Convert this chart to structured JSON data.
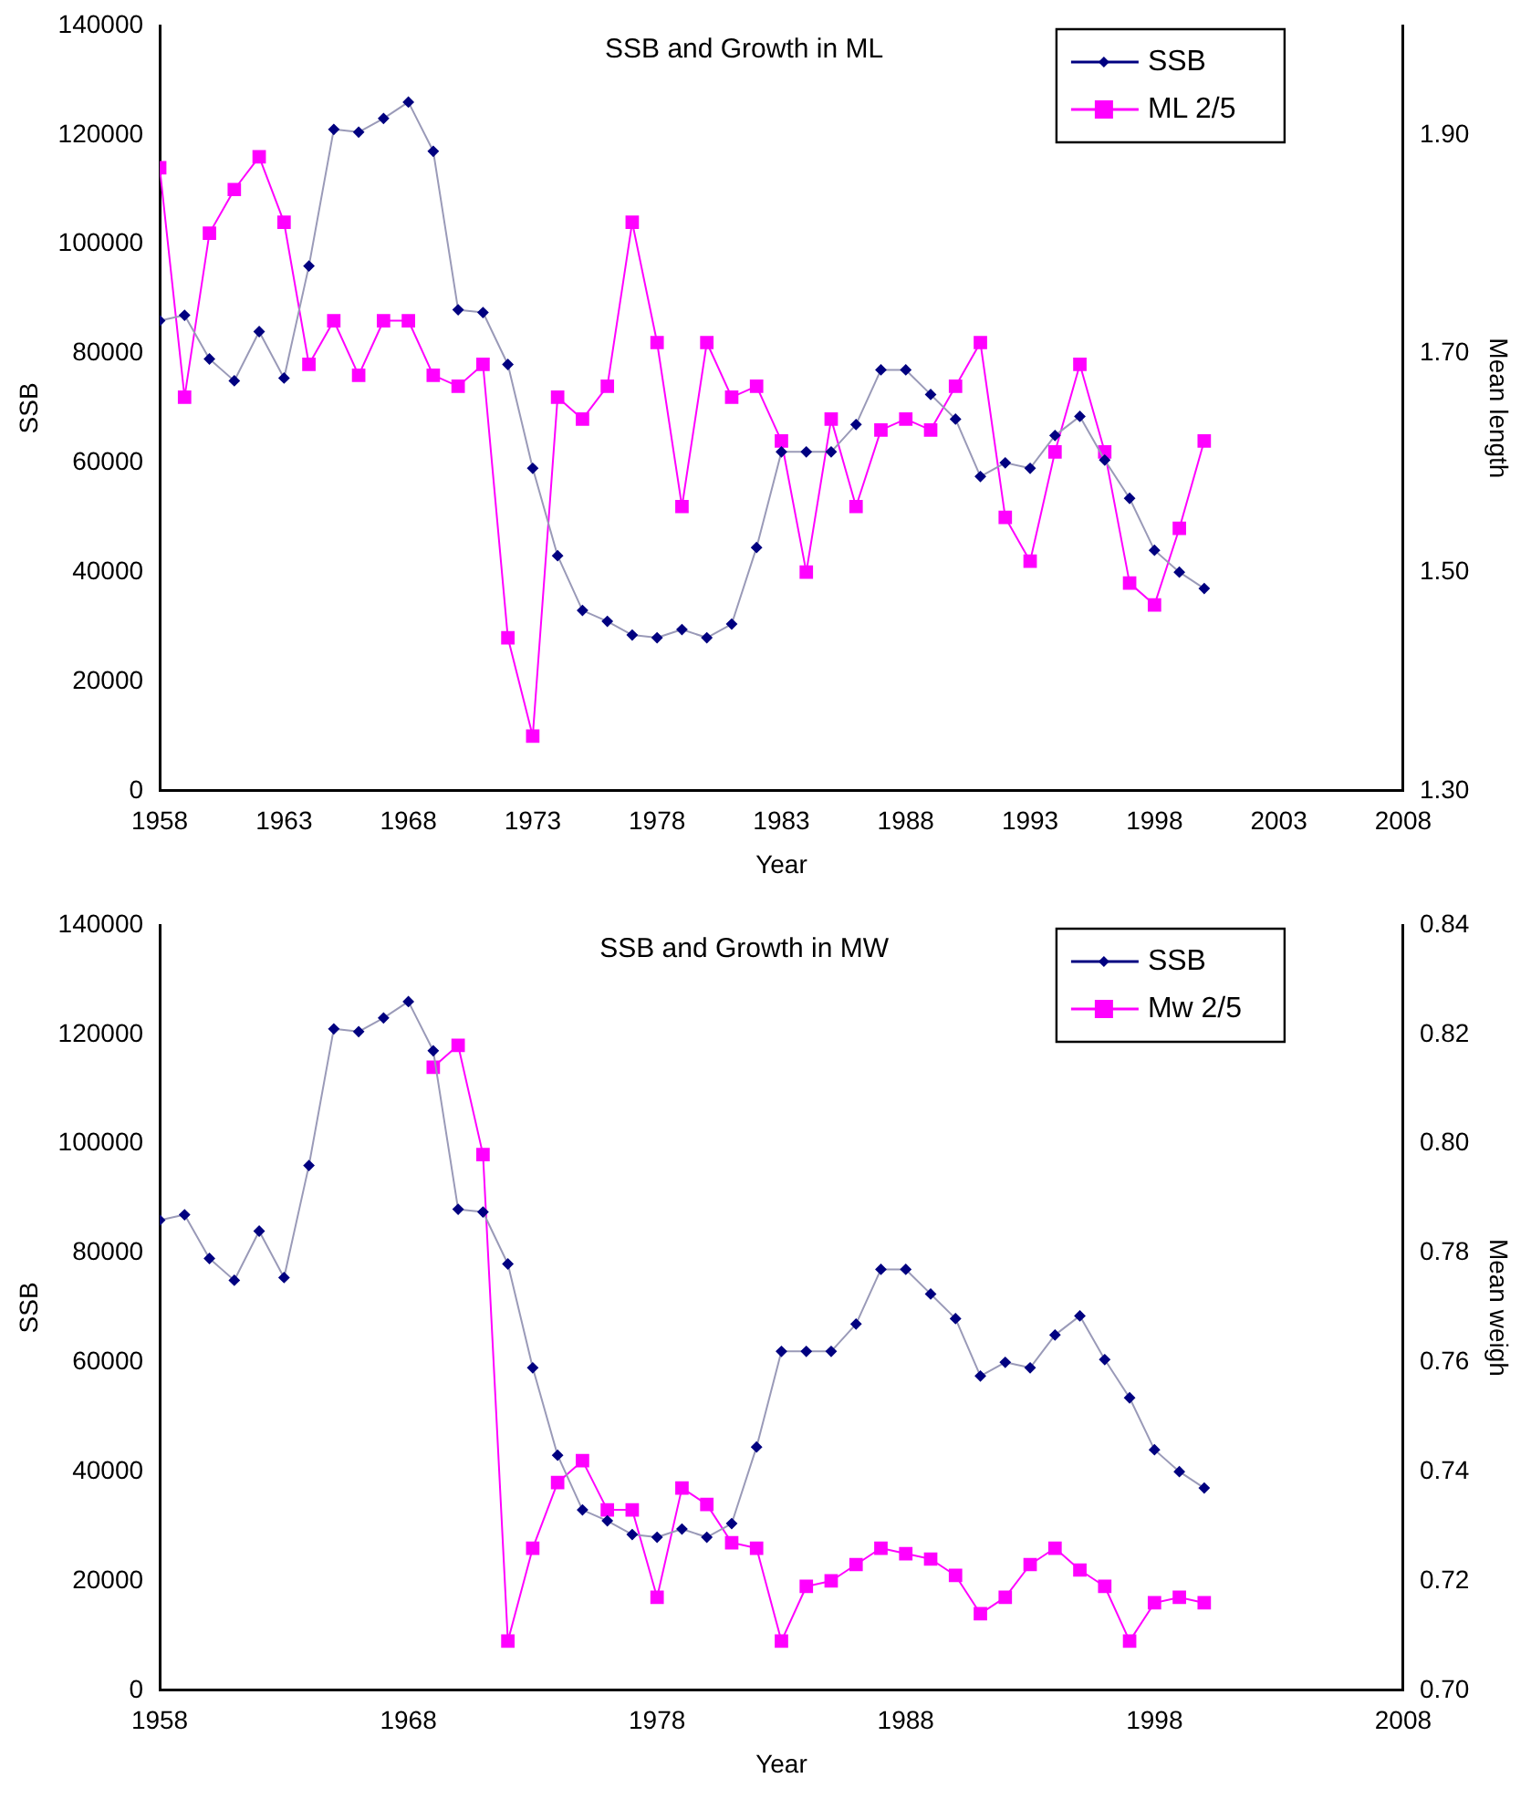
{
  "chart_data": [
    {
      "type": "line",
      "title": "SSB and Growth in ML",
      "xlabel": "Year",
      "ylabel": "SSB",
      "y2label": "Mean length",
      "x": [
        1958,
        1959,
        1960,
        1961,
        1962,
        1963,
        1964,
        1965,
        1966,
        1967,
        1968,
        1969,
        1970,
        1971,
        1972,
        1973,
        1974,
        1975,
        1976,
        1977,
        1978,
        1979,
        1980,
        1981,
        1982,
        1983,
        1984,
        1985,
        1986,
        1987,
        1988,
        1989,
        1990,
        1991,
        1992,
        1993,
        1994,
        1995,
        1996,
        1997,
        1998,
        1999,
        2000
      ],
      "series": [
        {
          "name": "SSB",
          "color": "#000080",
          "marker": "diamond",
          "values": [
            86000,
            87000,
            79000,
            75000,
            84000,
            75500,
            96000,
            121000,
            120500,
            123000,
            126000,
            117000,
            88000,
            87500,
            78000,
            59000,
            43000,
            33000,
            31000,
            28500,
            28000,
            29500,
            28000,
            30500,
            44500,
            62000,
            62000,
            62000,
            67000,
            77000,
            77000,
            72500,
            68000,
            57500,
            60000,
            59000,
            65000,
            68500,
            60500,
            53500,
            44000,
            40000,
            37000
          ]
        },
        {
          "name": "ML 2/5",
          "color": "#ff00ff",
          "marker": "square",
          "axis": "y2",
          "values": [
            1.87,
            1.66,
            1.81,
            1.85,
            1.88,
            1.82,
            1.69,
            1.73,
            1.68,
            1.73,
            1.73,
            1.68,
            1.67,
            1.69,
            1.44,
            1.35,
            1.66,
            1.64,
            1.67,
            1.82,
            1.71,
            1.56,
            1.71,
            1.66,
            1.67,
            1.62,
            1.5,
            1.64,
            1.56,
            1.63,
            1.64,
            1.63,
            1.67,
            1.71,
            1.55,
            1.51,
            1.61,
            1.69,
            1.61,
            1.49,
            1.47,
            1.54,
            1.62
          ]
        }
      ],
      "xlim": [
        1958,
        2008
      ],
      "xticks": [
        1958,
        1963,
        1968,
        1973,
        1978,
        1983,
        1988,
        1993,
        1998,
        2003,
        2008
      ],
      "ylim": [
        0,
        140000
      ],
      "yticks": [
        0,
        20000,
        40000,
        60000,
        80000,
        100000,
        120000,
        140000
      ],
      "y2lim": [
        1.3,
        2.0
      ],
      "y2ticks": [
        {
          "value": 1.3,
          "label": "1.30"
        },
        {
          "value": 1.5,
          "label": "1.50"
        },
        {
          "value": 1.7,
          "label": "1.70"
        },
        {
          "value": 1.9,
          "label": "1.90"
        }
      ],
      "grid": false,
      "legend": "top right"
    },
    {
      "type": "line",
      "title": "SSB and Growth in MW",
      "xlabel": "Year",
      "ylabel": "SSB",
      "y2label": "Mean weigh",
      "x": [
        1958,
        1959,
        1960,
        1961,
        1962,
        1963,
        1964,
        1965,
        1966,
        1967,
        1968,
        1969,
        1970,
        1971,
        1972,
        1973,
        1974,
        1975,
        1976,
        1977,
        1978,
        1979,
        1980,
        1981,
        1982,
        1983,
        1984,
        1985,
        1986,
        1987,
        1988,
        1989,
        1990,
        1991,
        1992,
        1993,
        1994,
        1995,
        1996,
        1997,
        1998,
        1999,
        2000
      ],
      "series": [
        {
          "name": "SSB",
          "color": "#000080",
          "marker": "diamond",
          "values": [
            86000,
            87000,
            79000,
            75000,
            84000,
            75500,
            96000,
            121000,
            120500,
            123000,
            126000,
            117000,
            88000,
            87500,
            78000,
            59000,
            43000,
            33000,
            31000,
            28500,
            28000,
            29500,
            28000,
            30500,
            44500,
            62000,
            62000,
            62000,
            67000,
            77000,
            77000,
            72500,
            68000,
            57500,
            60000,
            59000,
            65000,
            68500,
            60500,
            53500,
            44000,
            40000,
            37000
          ]
        },
        {
          "name": "Mw 2/5",
          "color": "#ff00ff",
          "marker": "square",
          "axis": "y2",
          "x": [
            1969,
            1970,
            1971,
            1972,
            1973,
            1974,
            1975,
            1976,
            1977,
            1978,
            1979,
            1980,
            1981,
            1982,
            1983,
            1984,
            1985,
            1986,
            1987,
            1988,
            1989,
            1990,
            1991,
            1992,
            1993,
            1994,
            1995,
            1996,
            1997,
            1998,
            1999,
            2000
          ],
          "values": [
            0.814,
            0.818,
            0.798,
            0.709,
            0.726,
            0.738,
            0.742,
            0.733,
            0.733,
            0.717,
            0.737,
            0.734,
            0.727,
            0.726,
            0.709,
            0.719,
            0.72,
            0.723,
            0.726,
            0.725,
            0.724,
            0.721,
            0.714,
            0.717,
            0.723,
            0.726,
            0.722,
            0.719,
            0.709,
            0.716,
            0.717,
            0.716
          ]
        }
      ],
      "xlim": [
        1958,
        2008
      ],
      "xticks": [
        1958,
        1968,
        1978,
        1988,
        1998,
        2008
      ],
      "ylim": [
        0,
        140000
      ],
      "yticks": [
        0,
        20000,
        40000,
        60000,
        80000,
        100000,
        120000,
        140000
      ],
      "y2lim": [
        0.7,
        0.84
      ],
      "y2ticks": [
        {
          "value": 0.7,
          "label": "0.70"
        },
        {
          "value": 0.72,
          "label": "0.72"
        },
        {
          "value": 0.74,
          "label": "0.74"
        },
        {
          "value": 0.76,
          "label": "0.76"
        },
        {
          "value": 0.78,
          "label": "0.78"
        },
        {
          "value": 0.8,
          "label": "0.80"
        },
        {
          "value": 0.82,
          "label": "0.82"
        },
        {
          "value": 0.84,
          "label": "0.84"
        }
      ],
      "grid": false,
      "legend": "top right"
    }
  ]
}
